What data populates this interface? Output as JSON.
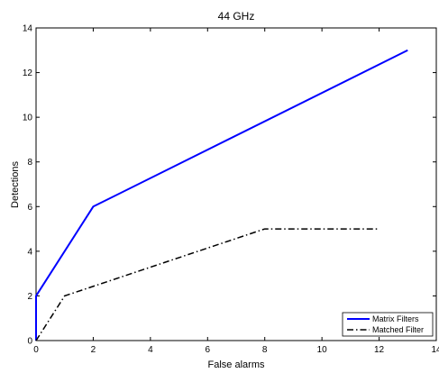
{
  "chart_data": {
    "type": "line",
    "title": "44 GHz",
    "xlabel": "False alarms",
    "ylabel": "Detections",
    "xlim": [
      0,
      14
    ],
    "ylim": [
      0,
      14
    ],
    "xticks": [
      0,
      2,
      4,
      6,
      8,
      10,
      12,
      14
    ],
    "yticks": [
      0,
      2,
      4,
      6,
      8,
      10,
      12,
      14
    ],
    "grid": false,
    "legend_position": "bottom-right",
    "series": [
      {
        "name": "Matrix Filters",
        "color": "#0000ff",
        "style": "solid",
        "x": [
          0,
          0,
          2,
          13
        ],
        "y": [
          0,
          2,
          6,
          13
        ]
      },
      {
        "name": "Matched Filter",
        "color": "#000000",
        "style": "dashdot",
        "x": [
          0,
          1,
          8,
          12
        ],
        "y": [
          0,
          2,
          5,
          5
        ]
      }
    ]
  }
}
